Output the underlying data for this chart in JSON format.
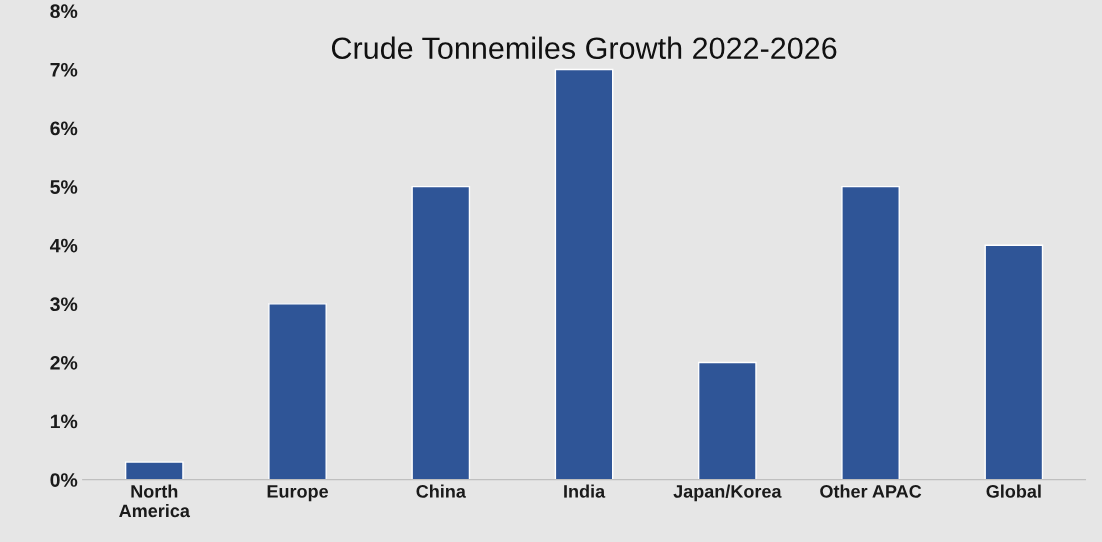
{
  "chart_data": {
    "type": "bar",
    "title": "Crude Tonnemiles Growth 2022-2026",
    "categories": [
      "North\nAmerica",
      "Europe",
      "China",
      "India",
      "Japan/Korea",
      "Other APAC",
      "Global"
    ],
    "values": [
      0.3,
      3,
      5,
      7,
      2,
      5,
      4
    ],
    "color": "#2f5597",
    "ylim": [
      0,
      8
    ],
    "yticks": [
      {
        "value": 0,
        "label": "0%"
      },
      {
        "value": 1,
        "label": "1%"
      },
      {
        "value": 2,
        "label": "2%"
      },
      {
        "value": 3,
        "label": "3%"
      },
      {
        "value": 4,
        "label": "4%"
      },
      {
        "value": 5,
        "label": "5%"
      },
      {
        "value": 6,
        "label": "6%"
      },
      {
        "value": 7,
        "label": "7%"
      },
      {
        "value": 8,
        "label": "8%"
      }
    ],
    "grid": false
  }
}
